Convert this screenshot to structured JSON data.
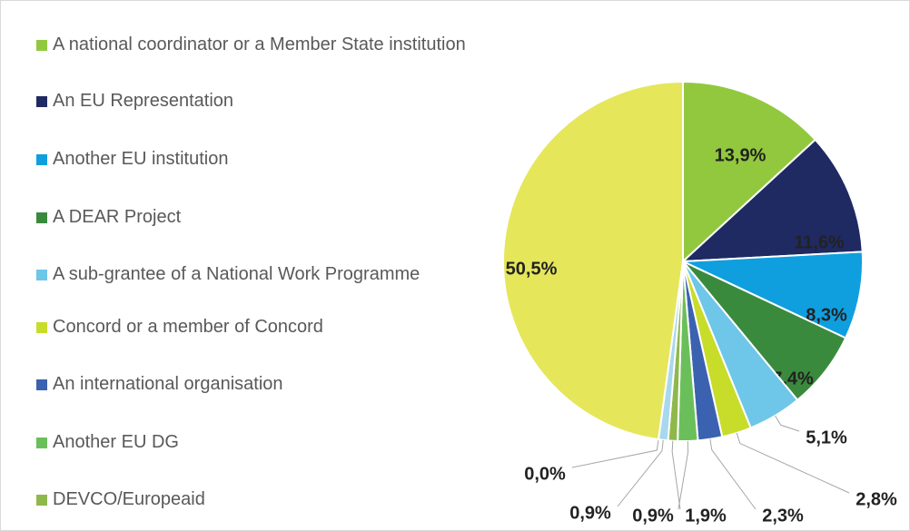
{
  "chart_data": {
    "type": "pie",
    "categories": [
      "A national coordinator or a Member State institution",
      "An EU Representation",
      "Another EU institution",
      "A DEAR Project",
      "A sub-grantee of a National Work Programme",
      "Concord or a member of Concord",
      "An international organisation",
      "Another EU DG",
      "DEVCO/Europeaid",
      null,
      null,
      null
    ],
    "values": [
      13.9,
      11.6,
      8.3,
      7.4,
      5.1,
      2.8,
      2.3,
      1.9,
      0.9,
      0.9,
      0.0,
      50.5
    ],
    "value_labels": [
      "13,9%",
      "11,6%",
      "8,3%",
      "7,4%",
      "5,1%",
      "2,8%",
      "2,3%",
      "1,9%",
      "0,9%",
      "0,9%",
      "0,0%",
      "50,5%"
    ],
    "colors": [
      "#92c83e",
      "#1f2a63",
      "#0f9fdf",
      "#3a8a3e",
      "#6ec6e8",
      "#c8dc2a",
      "#3b62b0",
      "#6bbf5b",
      "#8fb84b",
      "#a8d8ee",
      "#7fb0d8",
      "#e5e65a"
    ],
    "legend": "left"
  }
}
